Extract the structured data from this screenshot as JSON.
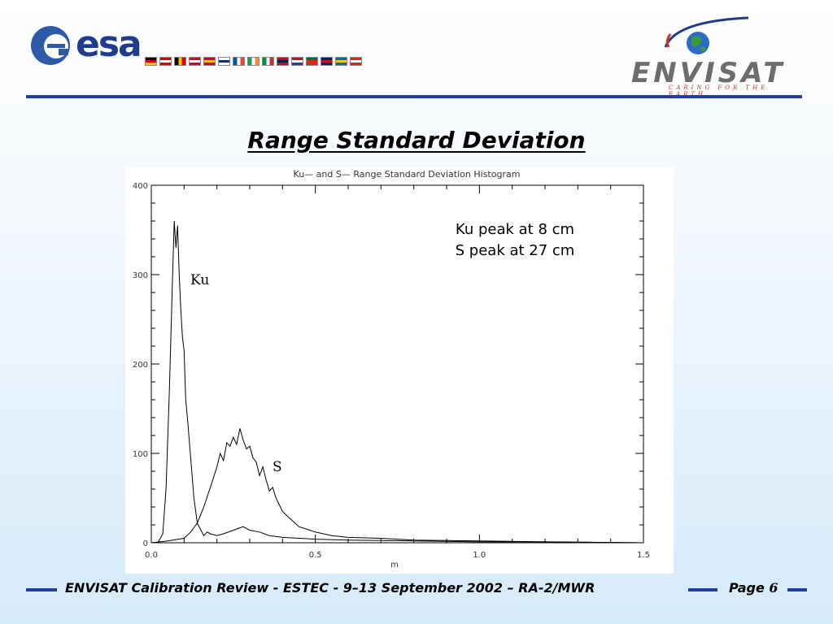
{
  "header": {
    "esa_logo_text": "esa",
    "envisat_logo_text": "ENVISAT",
    "envisat_tagline": "CARING FOR THE EARTH",
    "flags": [
      "de",
      "at",
      "be",
      "dk",
      "es",
      "fi",
      "fr",
      "ie",
      "it",
      "no",
      "nl",
      "pt",
      "gb",
      "se",
      "ch"
    ]
  },
  "slide": {
    "title": "Range Standard Deviation"
  },
  "footer": {
    "text": "ENVISAT Calibration Review - ESTEC - 9–13 September 2002 – RA-2/MWR",
    "page_label": "Page",
    "page_number": "6"
  },
  "chart_data": {
    "type": "line",
    "title": "Ku— and S— Range Standard Deviation Histogram",
    "xlabel": "m",
    "ylabel": "",
    "xlim": [
      0.0,
      1.5
    ],
    "ylim": [
      0,
      400
    ],
    "x_ticks": [
      "0.0",
      "0.5",
      "1.0",
      "1.5"
    ],
    "y_ticks": [
      "0",
      "100",
      "200",
      "300",
      "400"
    ],
    "annotations": [
      "Ku peak at 8 cm",
      "S peak at 27 cm"
    ],
    "series": [
      {
        "name": "Ku",
        "x": [
          0.0,
          0.02,
          0.035,
          0.045,
          0.055,
          0.065,
          0.07,
          0.075,
          0.08,
          0.085,
          0.09,
          0.095,
          0.1,
          0.105,
          0.11,
          0.12,
          0.13,
          0.14,
          0.15,
          0.16,
          0.17,
          0.18,
          0.2,
          0.22,
          0.25,
          0.28,
          0.3,
          0.33,
          0.36,
          0.4,
          0.5,
          0.6,
          0.8,
          1.0,
          1.2,
          1.5
        ],
        "y": [
          0,
          0,
          10,
          60,
          170,
          300,
          360,
          330,
          355,
          300,
          260,
          230,
          215,
          160,
          140,
          95,
          50,
          22,
          15,
          8,
          12,
          10,
          8,
          10,
          14,
          18,
          14,
          12,
          8,
          6,
          4,
          3,
          2,
          1,
          1,
          0
        ]
      },
      {
        "name": "S",
        "x": [
          0.0,
          0.05,
          0.1,
          0.12,
          0.14,
          0.16,
          0.18,
          0.2,
          0.21,
          0.22,
          0.23,
          0.24,
          0.25,
          0.26,
          0.27,
          0.28,
          0.29,
          0.3,
          0.31,
          0.32,
          0.33,
          0.34,
          0.35,
          0.36,
          0.37,
          0.38,
          0.4,
          0.42,
          0.45,
          0.5,
          0.55,
          0.6,
          0.7,
          0.8,
          1.0,
          1.2,
          1.5
        ],
        "y": [
          0,
          2,
          5,
          12,
          22,
          40,
          62,
          85,
          100,
          92,
          112,
          108,
          118,
          110,
          128,
          115,
          105,
          108,
          95,
          90,
          75,
          85,
          70,
          58,
          62,
          50,
          35,
          28,
          18,
          12,
          8,
          6,
          5,
          3,
          2,
          1,
          0
        ]
      }
    ]
  }
}
